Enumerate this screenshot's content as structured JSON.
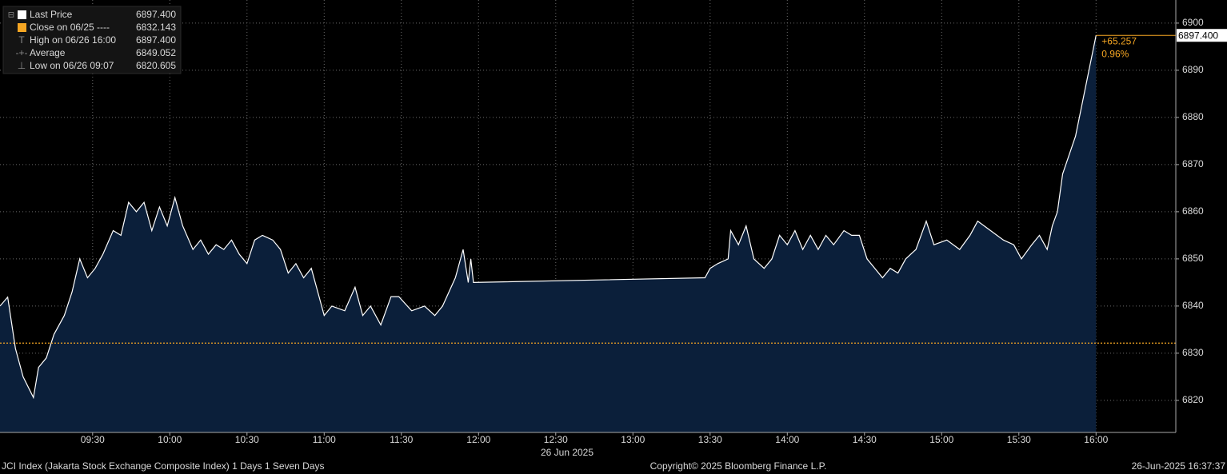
{
  "chart_data": {
    "type": "area",
    "legend": [
      {
        "label": "Last Price",
        "value": "6897.400"
      },
      {
        "label": "Close on 06/25 ----",
        "value": "6832.143"
      },
      {
        "label": "High on 06/26 16:00",
        "value": "6897.400"
      },
      {
        "label": "Average",
        "value": "6849.052"
      },
      {
        "label": "Low on 06/26 09:07",
        "value": "6820.605"
      }
    ],
    "series": [
      {
        "color": "#ffffff",
        "fill": "#0b1f3a",
        "x": [
          "08:54",
          "08:57",
          "09:00",
          "09:03",
          "09:07",
          "09:09",
          "09:12",
          "09:15",
          "09:19",
          "09:22",
          "09:25",
          "09:28",
          "09:31",
          "09:34",
          "09:38",
          "09:41",
          "09:44",
          "09:47",
          "09:50",
          "09:53",
          "09:56",
          "09:59",
          "10:02",
          "10:05",
          "10:09",
          "10:12",
          "10:15",
          "10:18",
          "10:21",
          "10:24",
          "10:27",
          "10:30",
          "10:33",
          "10:36",
          "10:40",
          "10:43",
          "10:46",
          "10:49",
          "10:52",
          "10:55",
          "10:58",
          "11:00",
          "11:03",
          "11:08",
          "11:12",
          "11:15",
          "11:18",
          "11:22",
          "11:26",
          "11:29",
          "11:34",
          "11:39",
          "11:43",
          "11:46",
          "11:51",
          "11:54",
          "11:56",
          "11:57",
          "11:58",
          "13:28",
          "13:30",
          "13:33",
          "13:37",
          "13:38",
          "13:41",
          "13:44",
          "13:47",
          "13:51",
          "13:54",
          "13:57",
          "14:00",
          "14:03",
          "14:06",
          "14:09",
          "14:12",
          "14:15",
          "14:18",
          "14:22",
          "14:25",
          "14:28",
          "14:31",
          "14:34",
          "14:37",
          "14:40",
          "14:43",
          "14:46",
          "14:50",
          "14:54",
          "14:57",
          "15:02",
          "15:07",
          "15:11",
          "15:14",
          "15:19",
          "15:24",
          "15:28",
          "15:31",
          "15:35",
          "15:38",
          "15:41",
          "15:43",
          "15:45",
          "15:47",
          "15:52",
          "16:00"
        ],
        "values": [
          6840,
          6841.9,
          6831,
          6825,
          6820.605,
          6827,
          6829,
          6834,
          6838,
          6843,
          6850,
          6846,
          6848,
          6851,
          6856,
          6855,
          6862,
          6860,
          6862,
          6856,
          6861,
          6857,
          6863,
          6857,
          6852,
          6854,
          6851,
          6853,
          6852,
          6854,
          6851,
          6849,
          6854,
          6855,
          6854,
          6852,
          6847,
          6849,
          6846,
          6848,
          6842,
          6838,
          6840,
          6839,
          6844,
          6838,
          6840,
          6836,
          6842,
          6842,
          6839,
          6840,
          6838,
          6840,
          6846,
          6852,
          6845,
          6850,
          6845,
          6846,
          6848,
          6849,
          6850,
          6856,
          6853,
          6857,
          6850,
          6848,
          6850,
          6855,
          6853,
          6856,
          6852,
          6855,
          6852,
          6855,
          6853,
          6856,
          6855,
          6855,
          6850,
          6848,
          6846,
          6848,
          6847,
          6850,
          6852,
          6858,
          6853,
          6854,
          6852,
          6855,
          6858,
          6856,
          6854,
          6853,
          6850,
          6853,
          6855,
          6852,
          6857,
          6860,
          6868,
          6876,
          6897.4
        ]
      }
    ],
    "reference_line": {
      "value": 6832.143,
      "color": "#f5a623"
    },
    "last_label": "6897.400",
    "change": "+65.257",
    "change_pct": "0.96%",
    "change_color": "#f5a623",
    "xlim": [
      "08:54",
      "16:31"
    ],
    "xticks": [
      "09:30",
      "10:00",
      "10:30",
      "11:00",
      "11:30",
      "12:00",
      "12:30",
      "13:00",
      "13:30",
      "14:00",
      "14:30",
      "15:00",
      "15:30",
      "16:00"
    ],
    "xlabel": "26 Jun 2025",
    "ylim": [
      6813.2,
      6904.9
    ],
    "yticks": [
      6820,
      6830,
      6840,
      6850,
      6860,
      6870,
      6880,
      6890,
      6900
    ],
    "grid": true,
    "footer": {
      "left": "JCI Index (Jakarta Stock Exchange Composite Index) 1 Days 1 Seven Days",
      "center": "Copyright© 2025 Bloomberg Finance L.P.",
      "right": "26-Jun-2025 16:37:37"
    }
  }
}
